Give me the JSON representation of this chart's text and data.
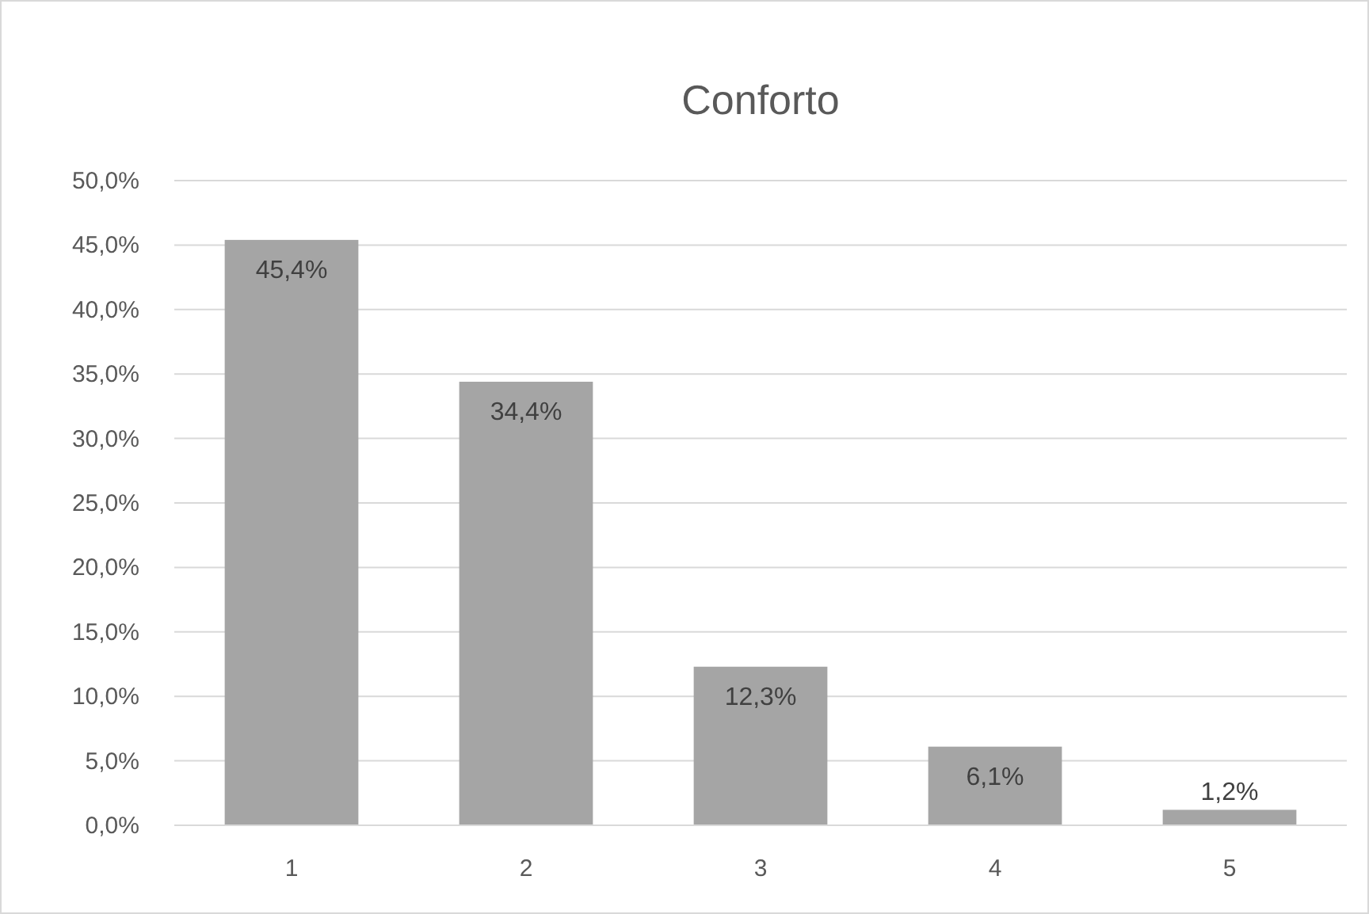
{
  "chart_data": {
    "type": "bar",
    "title": "Conforto",
    "categories": [
      "1",
      "2",
      "3",
      "4",
      "5"
    ],
    "values": [
      45.4,
      34.4,
      12.3,
      6.1,
      1.2
    ],
    "value_labels": [
      "45,4%",
      "34,4%",
      "12,3%",
      "6,1%",
      "1,2%"
    ],
    "color": "#a5a5a5",
    "ylim": [
      0,
      50
    ],
    "yticks": [
      {
        "value": 0,
        "label": "0,0%"
      },
      {
        "value": 5,
        "label": "5,0%"
      },
      {
        "value": 10,
        "label": "10,0%"
      },
      {
        "value": 15,
        "label": "15,0%"
      },
      {
        "value": 20,
        "label": "20,0%"
      },
      {
        "value": 25,
        "label": "25,0%"
      },
      {
        "value": 30,
        "label": "30,0%"
      },
      {
        "value": 35,
        "label": "35,0%"
      },
      {
        "value": 40,
        "label": "40,0%"
      },
      {
        "value": 45,
        "label": "45,0%"
      },
      {
        "value": 50,
        "label": "50,0%"
      }
    ],
    "grid": "y"
  }
}
